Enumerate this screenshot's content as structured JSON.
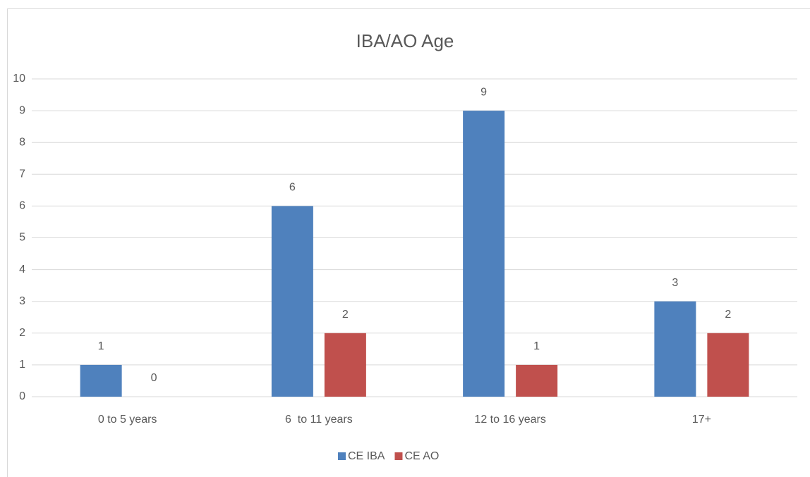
{
  "chart_data": {
    "type": "bar",
    "title": "IBA/AO Age",
    "categories": [
      "0 to 5 years",
      "6  to 11 years",
      "12 to 16 years",
      "17+"
    ],
    "series": [
      {
        "name": "CE IBA",
        "color": "#4f81bd",
        "values": [
          1,
          6,
          9,
          3
        ]
      },
      {
        "name": "CE AO",
        "color": "#c0504d",
        "values": [
          0,
          2,
          1,
          2
        ]
      }
    ],
    "ylim": [
      0,
      10
    ],
    "yticks": [
      0,
      1,
      2,
      3,
      4,
      5,
      6,
      7,
      8,
      9,
      10
    ],
    "grid": true,
    "legend": "bottom"
  }
}
